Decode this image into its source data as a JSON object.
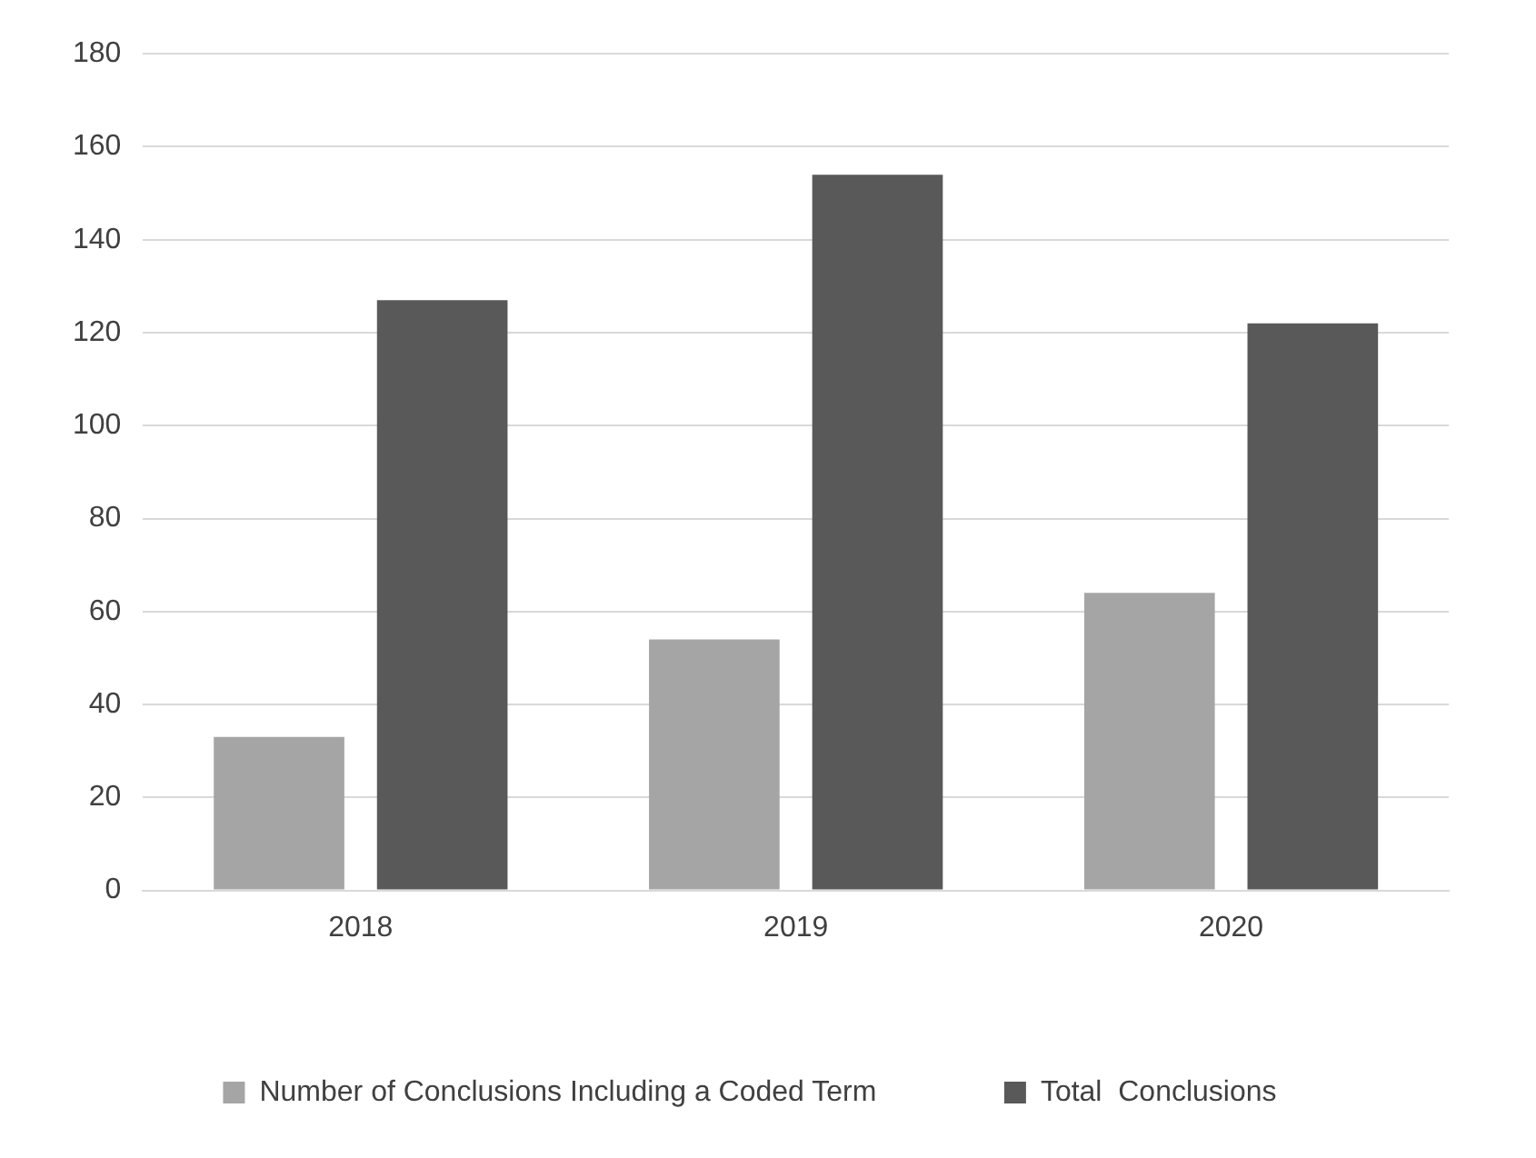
{
  "chart_data": {
    "type": "bar",
    "categories": [
      "2018",
      "2019",
      "2020"
    ],
    "series": [
      {
        "name": "Number of Conclusions Including a Coded Term",
        "color": "#a5a5a5",
        "values": [
          33,
          54,
          64
        ]
      },
      {
        "name": "Total  Conclusions",
        "color": "#595959",
        "values": [
          127,
          154,
          122
        ]
      }
    ],
    "ylim": [
      0,
      180
    ],
    "yticks": [
      0,
      20,
      40,
      60,
      80,
      100,
      120,
      140,
      160,
      180
    ],
    "grid": "y",
    "legend": "bottom"
  }
}
